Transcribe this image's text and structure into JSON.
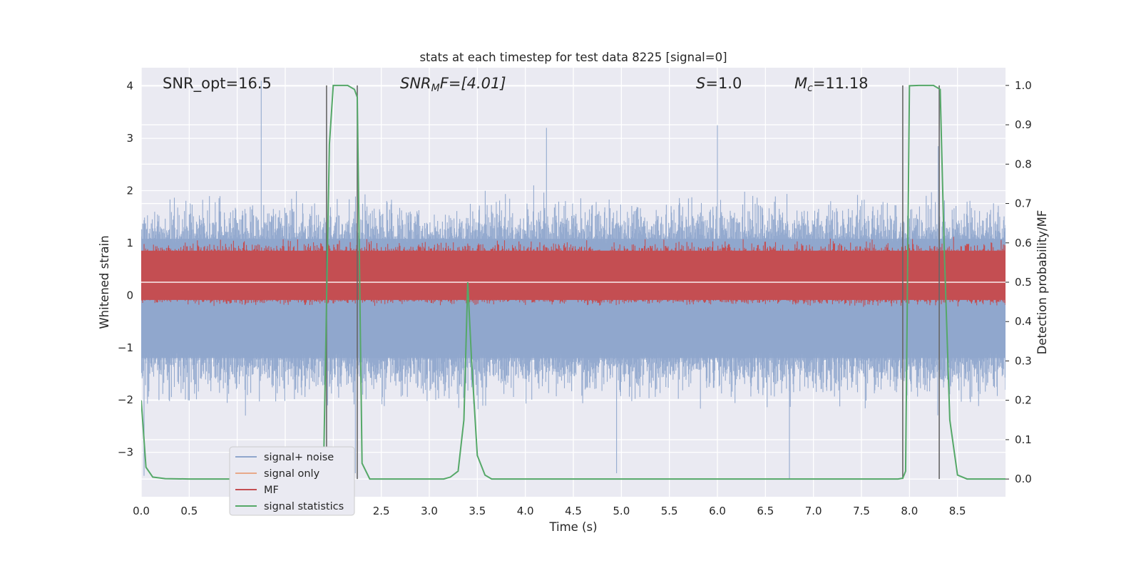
{
  "chart_data": {
    "type": "line",
    "title": "stats at each timestep for test data 8225 [signal=0]",
    "xlabel": "Time (s)",
    "ylabel": "Whitened strain",
    "ylabel_right": "Detection probability/MF",
    "xlim": [
      0,
      9.0
    ],
    "ylim": [
      -3.85,
      4.35
    ],
    "ylim_right": [
      -0.045,
      1.045
    ],
    "xticks": [
      "0.0",
      "0.5",
      "1.0",
      "1.5",
      "2.0",
      "2.5",
      "3.0",
      "3.5",
      "4.0",
      "4.5",
      "5.0",
      "5.5",
      "6.0",
      "6.5",
      "7.0",
      "7.5",
      "8.0",
      "8.5"
    ],
    "yticks": [
      "4",
      "3",
      "2",
      "1",
      "0",
      "−1",
      "−2",
      "−3"
    ],
    "yticks_right": [
      "1.0",
      "0.9",
      "0.8",
      "0.7",
      "0.6",
      "0.5",
      "0.4",
      "0.3",
      "0.2",
      "0.1",
      "0.0"
    ],
    "grid": true,
    "legend_position": "lower-left",
    "annotations": {
      "snr_opt": "SNR_opt=16.5",
      "snr_mf_sym": "SNR",
      "snr_mf_sub": "M",
      "snr_mf_rest": "F=[4.01]",
      "s_sym": "S",
      "s_rest": "=1.0",
      "mc_sym": "M",
      "mc_sub": "c",
      "mc_rest": "=11.18"
    },
    "series": [
      {
        "name": "signal+ noise",
        "color": "#8fa6cc",
        "style": "noise band",
        "envelope_approx": {
          "upper_typical": 1.8,
          "lower_typical": -2.0
        },
        "peaks": [
          [
            1.25,
            4.1
          ],
          [
            4.22,
            3.2
          ],
          [
            6.0,
            3.25
          ],
          [
            8.3,
            2.85
          ],
          [
            2.23,
            -3.4
          ],
          [
            4.95,
            -3.4
          ],
          [
            6.75,
            -3.5
          ],
          [
            0.03,
            -3.45
          ]
        ]
      },
      {
        "name": "signal only",
        "color": "#e8a98a",
        "values": []
      },
      {
        "name": "MF",
        "color": "#c44e52",
        "axis": "right",
        "style": "noise band",
        "baseline": 0.5,
        "band": [
          0.455,
          0.58
        ]
      },
      {
        "name": "signal statistics",
        "color": "#55a868",
        "axis": "right",
        "x": [
          0.0,
          0.05,
          0.12,
          0.25,
          0.5,
          1.0,
          1.5,
          1.75,
          1.85,
          1.9,
          1.93,
          1.96,
          2.0,
          2.05,
          2.15,
          2.22,
          2.25,
          2.3,
          2.38,
          2.5,
          3.0,
          3.15,
          3.22,
          3.3,
          3.36,
          3.4,
          3.44,
          3.5,
          3.58,
          3.65,
          4.0,
          5.0,
          6.0,
          7.0,
          7.6,
          7.8,
          7.88,
          7.93,
          7.96,
          8.0,
          8.1,
          8.25,
          8.32,
          8.36,
          8.42,
          8.5,
          8.6,
          9.0
        ],
        "values": [
          0.2,
          0.03,
          0.005,
          0.001,
          0.0,
          0.0,
          0.0,
          0.0,
          0.001,
          0.04,
          0.45,
          0.85,
          1.0,
          1.0,
          1.0,
          0.99,
          0.97,
          0.04,
          0.0,
          0.0,
          0.0,
          0.0,
          0.005,
          0.02,
          0.15,
          0.5,
          0.3,
          0.06,
          0.01,
          0.0,
          0.0,
          0.0,
          0.0,
          0.0,
          0.0,
          0.0,
          0.0,
          0.002,
          0.02,
          0.999,
          1.0,
          1.0,
          0.99,
          0.6,
          0.15,
          0.01,
          0.0,
          0.0
        ]
      }
    ],
    "vlines": [
      {
        "x": 1.93,
        "color": "#666666"
      },
      {
        "x": 2.25,
        "color": "#666666"
      },
      {
        "x": 7.93,
        "color": "#666666"
      },
      {
        "x": 8.31,
        "color": "#666666"
      }
    ]
  }
}
